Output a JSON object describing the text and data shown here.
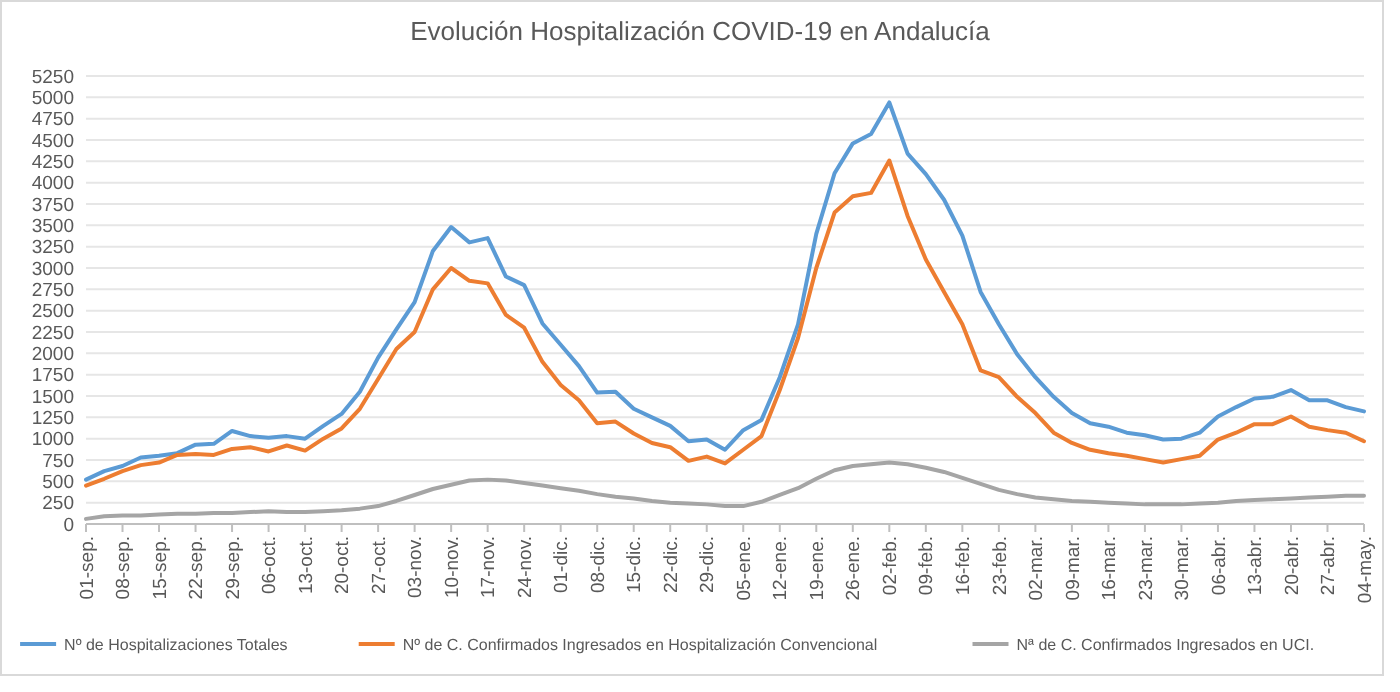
{
  "chart_data": {
    "type": "line",
    "title": "Evolución Hospitalización COVID-19 en Andalucía",
    "categories": [
      "01-sep.",
      null,
      "08-sep.",
      null,
      "15-sep.",
      null,
      "22-sep.",
      null,
      "29-sep.",
      null,
      "06-oct.",
      null,
      "13-oct.",
      null,
      "20-oct.",
      null,
      "27-oct.",
      null,
      "03-nov.",
      null,
      "10-nov.",
      null,
      "17-nov.",
      null,
      "24-nov.",
      null,
      "01-dic.",
      null,
      "08-dic.",
      null,
      "15-dic.",
      null,
      "22-dic.",
      null,
      "29-dic.",
      null,
      "05-ene.",
      null,
      "12-ene.",
      null,
      "19-ene.",
      null,
      "26-ene.",
      null,
      "02-feb.",
      null,
      "09-feb.",
      null,
      "16-feb.",
      null,
      "23-feb.",
      null,
      "02-mar.",
      null,
      "09-mar.",
      null,
      "16-mar.",
      null,
      "23-mar.",
      null,
      "30-mar.",
      null,
      "06-abr.",
      null,
      "13-abr.",
      null,
      "20-abr.",
      null,
      "27-abr.",
      null,
      "04-may."
    ],
    "series": [
      {
        "name": "Nº de Hospitalizaciones Totales",
        "color": "#5b9bd5",
        "values": [
          520,
          620,
          680,
          780,
          800,
          830,
          930,
          940,
          1090,
          1030,
          1010,
          1030,
          1000,
          1150,
          1290,
          1550,
          1950,
          2280,
          2600,
          3200,
          3480,
          3300,
          3350,
          2900,
          2800,
          2350,
          2100,
          1850,
          1540,
          1550,
          1350,
          1250,
          1150,
          970,
          990,
          870,
          1100,
          1220,
          1720,
          2340,
          3400,
          4110,
          4460,
          4570,
          4940,
          4340,
          4100,
          3800,
          3380,
          2720,
          2340,
          1990,
          1720,
          1490,
          1300,
          1180,
          1140,
          1070,
          1040,
          990,
          1000,
          1070,
          1260,
          1370,
          1470,
          1490,
          1570,
          1450,
          1450,
          1370,
          1320
        ]
      },
      {
        "name": "Nº de C. Confirmados Ingresados en Hospitalización Convencional",
        "color": "#ed7d31",
        "values": [
          450,
          530,
          620,
          690,
          720,
          810,
          820,
          810,
          880,
          900,
          850,
          920,
          860,
          1000,
          1120,
          1350,
          1700,
          2050,
          2250,
          2750,
          3000,
          2850,
          2820,
          2450,
          2300,
          1900,
          1630,
          1450,
          1180,
          1200,
          1060,
          950,
          900,
          740,
          790,
          710,
          870,
          1030,
          1570,
          2180,
          3000,
          3650,
          3840,
          3880,
          4260,
          3610,
          3100,
          2720,
          2340,
          1800,
          1720,
          1490,
          1300,
          1070,
          950,
          870,
          830,
          800,
          760,
          720,
          760,
          800,
          990,
          1070,
          1170,
          1170,
          1260,
          1140,
          1100,
          1070,
          970
        ]
      },
      {
        "name": "Nª de C. Confirmados Ingresados en UCI.",
        "color": "#a5a5a5",
        "values": [
          60,
          90,
          100,
          100,
          110,
          120,
          120,
          130,
          130,
          140,
          150,
          140,
          140,
          150,
          160,
          180,
          210,
          270,
          340,
          410,
          460,
          510,
          520,
          510,
          480,
          450,
          420,
          390,
          350,
          320,
          300,
          270,
          250,
          240,
          230,
          210,
          210,
          260,
          340,
          420,
          530,
          630,
          680,
          700,
          720,
          700,
          660,
          610,
          540,
          470,
          400,
          350,
          310,
          290,
          270,
          260,
          250,
          240,
          230,
          230,
          230,
          240,
          250,
          270,
          280,
          290,
          300,
          310,
          320,
          330,
          330
        ]
      }
    ],
    "ylim": [
      0,
      5250
    ],
    "yticks": [
      0,
      250,
      500,
      750,
      1000,
      1250,
      1500,
      1750,
      2000,
      2250,
      2500,
      2750,
      3000,
      3250,
      3500,
      3750,
      4000,
      4250,
      4500,
      4750,
      5000,
      5250
    ],
    "grid": "y",
    "legend": "bottom",
    "marker": "none",
    "line_style": "solid"
  }
}
